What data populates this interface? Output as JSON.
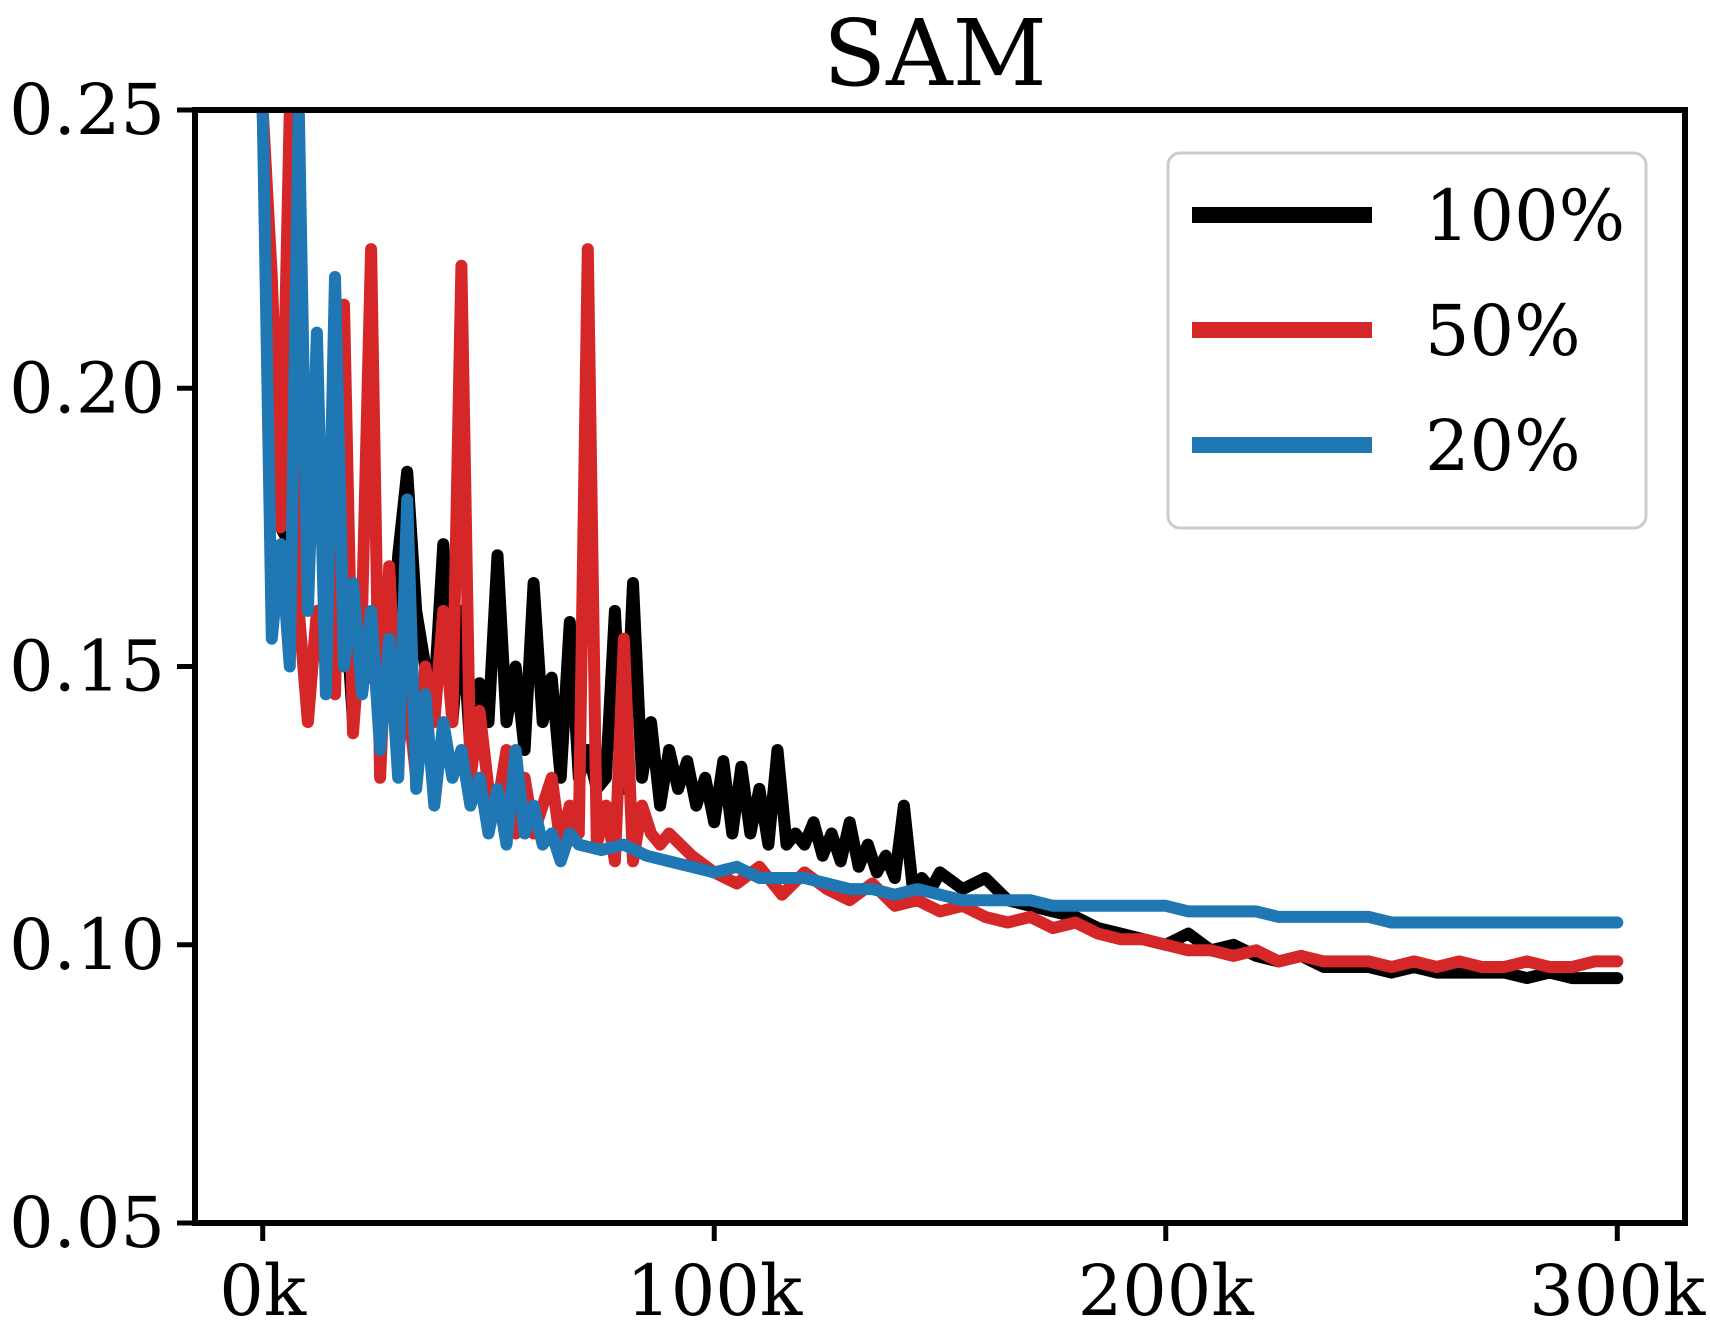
{
  "chart_data": {
    "type": "line",
    "title": "SAM",
    "xlabel": "",
    "ylabel": "",
    "xlim": [
      -15000,
      315000
    ],
    "ylim": [
      0.05,
      0.25
    ],
    "xticks": [
      {
        "value": 0,
        "label": "0k"
      },
      {
        "value": 100000,
        "label": "100k"
      },
      {
        "value": 200000,
        "label": "200k"
      },
      {
        "value": 300000,
        "label": "300k"
      }
    ],
    "yticks": [
      {
        "value": 0.05,
        "label": "0.05"
      },
      {
        "value": 0.1,
        "label": "0.10"
      },
      {
        "value": 0.15,
        "label": "0.15"
      },
      {
        "value": 0.2,
        "label": "0.20"
      },
      {
        "value": 0.25,
        "label": "0.25"
      }
    ],
    "grid": false,
    "legend_position": "top-right",
    "series": [
      {
        "name": "100%",
        "color": "#000000",
        "x": [
          0,
          2000,
          4000,
          6000,
          8000,
          10000,
          12000,
          14000,
          16000,
          18000,
          20000,
          22000,
          24000,
          26000,
          28000,
          30000,
          32000,
          34000,
          36000,
          38000,
          40000,
          42000,
          44000,
          46000,
          48000,
          50000,
          52000,
          54000,
          56000,
          58000,
          60000,
          62000,
          64000,
          66000,
          68000,
          70000,
          72000,
          74000,
          76000,
          78000,
          80000,
          82000,
          84000,
          86000,
          88000,
          90000,
          92000,
          94000,
          96000,
          98000,
          100000,
          102000,
          104000,
          106000,
          108000,
          110000,
          112000,
          114000,
          116000,
          118000,
          120000,
          122000,
          124000,
          126000,
          128000,
          130000,
          132000,
          134000,
          136000,
          138000,
          140000,
          142000,
          144000,
          146000,
          148000,
          150000,
          155000,
          160000,
          165000,
          170000,
          175000,
          180000,
          185000,
          190000,
          195000,
          200000,
          205000,
          210000,
          215000,
          220000,
          225000,
          230000,
          235000,
          240000,
          245000,
          250000,
          255000,
          260000,
          265000,
          270000,
          275000,
          280000,
          285000,
          290000,
          295000,
          300000
        ],
        "y": [
          0.25,
          0.19,
          0.175,
          0.172,
          0.18,
          0.168,
          0.2,
          0.16,
          0.152,
          0.165,
          0.14,
          0.158,
          0.148,
          0.162,
          0.145,
          0.17,
          0.185,
          0.16,
          0.15,
          0.145,
          0.172,
          0.14,
          0.16,
          0.135,
          0.147,
          0.14,
          0.17,
          0.14,
          0.15,
          0.135,
          0.165,
          0.14,
          0.148,
          0.13,
          0.158,
          0.13,
          0.135,
          0.128,
          0.13,
          0.16,
          0.128,
          0.165,
          0.13,
          0.14,
          0.125,
          0.135,
          0.128,
          0.133,
          0.125,
          0.13,
          0.122,
          0.133,
          0.12,
          0.132,
          0.12,
          0.128,
          0.118,
          0.135,
          0.118,
          0.12,
          0.118,
          0.122,
          0.116,
          0.12,
          0.115,
          0.122,
          0.114,
          0.118,
          0.113,
          0.116,
          0.112,
          0.125,
          0.11,
          0.112,
          0.11,
          0.113,
          0.11,
          0.112,
          0.108,
          0.107,
          0.106,
          0.105,
          0.103,
          0.102,
          0.101,
          0.1,
          0.102,
          0.099,
          0.1,
          0.098,
          0.097,
          0.098,
          0.096,
          0.096,
          0.096,
          0.095,
          0.096,
          0.095,
          0.095,
          0.095,
          0.095,
          0.094,
          0.095,
          0.094,
          0.094,
          0.094
        ]
      },
      {
        "name": "50%",
        "color": "#d62728",
        "x": [
          0,
          2000,
          4000,
          6000,
          8000,
          10000,
          12000,
          14000,
          16000,
          18000,
          20000,
          22000,
          24000,
          26000,
          28000,
          30000,
          32000,
          34000,
          36000,
          38000,
          40000,
          42000,
          44000,
          46000,
          48000,
          50000,
          52000,
          54000,
          56000,
          58000,
          60000,
          62000,
          64000,
          66000,
          68000,
          70000,
          72000,
          74000,
          76000,
          78000,
          80000,
          82000,
          84000,
          86000,
          88000,
          90000,
          95000,
          100000,
          105000,
          110000,
          115000,
          120000,
          125000,
          130000,
          135000,
          140000,
          145000,
          150000,
          155000,
          160000,
          165000,
          170000,
          175000,
          180000,
          185000,
          190000,
          195000,
          200000,
          205000,
          210000,
          215000,
          220000,
          225000,
          230000,
          235000,
          240000,
          245000,
          250000,
          255000,
          260000,
          265000,
          270000,
          275000,
          280000,
          285000,
          290000,
          295000,
          300000
        ],
        "y": [
          0.25,
          0.22,
          0.175,
          0.25,
          0.16,
          0.14,
          0.16,
          0.15,
          0.145,
          0.215,
          0.138,
          0.16,
          0.225,
          0.13,
          0.168,
          0.135,
          0.145,
          0.13,
          0.15,
          0.14,
          0.16,
          0.14,
          0.222,
          0.13,
          0.142,
          0.128,
          0.125,
          0.135,
          0.12,
          0.13,
          0.12,
          0.125,
          0.13,
          0.118,
          0.125,
          0.12,
          0.225,
          0.118,
          0.125,
          0.115,
          0.155,
          0.115,
          0.125,
          0.12,
          0.118,
          0.12,
          0.116,
          0.113,
          0.111,
          0.114,
          0.109,
          0.113,
          0.11,
          0.108,
          0.111,
          0.107,
          0.108,
          0.106,
          0.107,
          0.105,
          0.104,
          0.105,
          0.103,
          0.104,
          0.102,
          0.101,
          0.101,
          0.1,
          0.099,
          0.099,
          0.098,
          0.099,
          0.097,
          0.098,
          0.097,
          0.097,
          0.097,
          0.096,
          0.097,
          0.096,
          0.097,
          0.096,
          0.096,
          0.097,
          0.096,
          0.096,
          0.097,
          0.097
        ]
      },
      {
        "name": "20%",
        "color": "#1f77b4",
        "x": [
          0,
          2000,
          4000,
          6000,
          8000,
          10000,
          12000,
          14000,
          16000,
          18000,
          20000,
          22000,
          24000,
          26000,
          28000,
          30000,
          32000,
          34000,
          36000,
          38000,
          40000,
          42000,
          44000,
          46000,
          48000,
          50000,
          52000,
          54000,
          56000,
          58000,
          60000,
          62000,
          64000,
          66000,
          68000,
          70000,
          75000,
          80000,
          85000,
          90000,
          95000,
          100000,
          105000,
          110000,
          115000,
          120000,
          125000,
          130000,
          135000,
          140000,
          145000,
          150000,
          155000,
          160000,
          165000,
          170000,
          175000,
          180000,
          185000,
          190000,
          195000,
          200000,
          205000,
          210000,
          215000,
          220000,
          225000,
          230000,
          235000,
          240000,
          245000,
          250000,
          255000,
          260000,
          265000,
          270000,
          275000,
          280000,
          285000,
          290000,
          295000,
          300000
        ],
        "y": [
          0.25,
          0.155,
          0.172,
          0.15,
          0.25,
          0.16,
          0.21,
          0.145,
          0.22,
          0.15,
          0.165,
          0.145,
          0.16,
          0.135,
          0.155,
          0.13,
          0.18,
          0.128,
          0.145,
          0.125,
          0.14,
          0.13,
          0.135,
          0.125,
          0.13,
          0.12,
          0.128,
          0.118,
          0.135,
          0.12,
          0.125,
          0.118,
          0.12,
          0.115,
          0.12,
          0.118,
          0.117,
          0.118,
          0.116,
          0.115,
          0.114,
          0.113,
          0.114,
          0.112,
          0.112,
          0.112,
          0.111,
          0.11,
          0.11,
          0.109,
          0.11,
          0.109,
          0.108,
          0.108,
          0.108,
          0.108,
          0.107,
          0.107,
          0.107,
          0.107,
          0.107,
          0.107,
          0.106,
          0.106,
          0.106,
          0.106,
          0.105,
          0.105,
          0.105,
          0.105,
          0.105,
          0.104,
          0.104,
          0.104,
          0.104,
          0.104,
          0.104,
          0.104,
          0.104,
          0.104,
          0.104,
          0.104
        ]
      }
    ]
  }
}
